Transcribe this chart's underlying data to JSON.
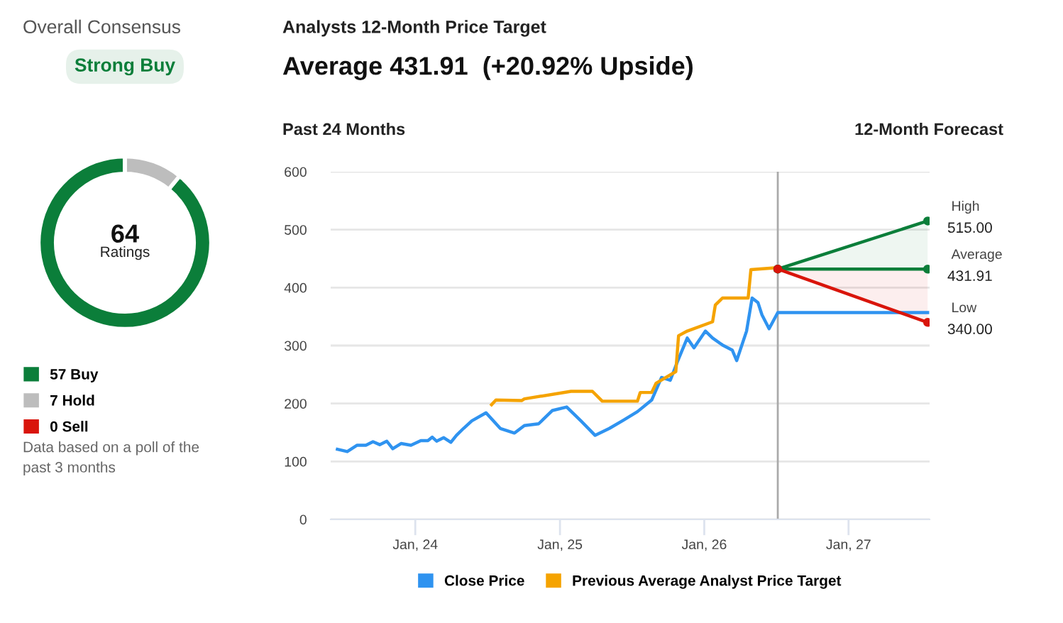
{
  "chart_data": [
    {
      "type": "donut",
      "title": "Overall Consensus",
      "subtitle": "Strong Buy",
      "categories": [
        "57 Buy",
        "7 Hold",
        "0 Sell"
      ],
      "values": [
        57,
        7,
        0
      ],
      "colors": [
        "#0b7e3a",
        "#bdbdbd",
        "#d9150b"
      ],
      "legend": "bottom",
      "annotations": [
        "64",
        "Ratings",
        "Data based on a poll of the\npast 3 months"
      ]
    },
    {
      "type": "line",
      "title": "Analysts 12-Month Price Target",
      "subtitle": "Average 431.91  (+20.92% Upside)",
      "annotations": [
        "Past 24 Months",
        "12-Month Forecast"
      ],
      "series": [
        {
          "name": "Close Price",
          "color": "#2f93f0",
          "x": [
            "2023-06-18",
            "2023-07-13",
            "2023-08-07",
            "2023-08-29",
            "2023-09-16",
            "2023-10-03",
            "2023-10-21",
            "2023-11-05",
            "2023-11-26",
            "2023-12-21",
            "2024-01-15",
            "2024-02-02",
            "2024-02-13",
            "2024-02-24",
            "2024-03-13",
            "2024-03-31",
            "2024-04-14",
            "2024-05-02",
            "2024-05-23",
            "2024-06-28",
            "2024-08-03",
            "2024-09-08",
            "2024-10-03",
            "2024-11-08",
            "2024-12-13",
            "2025-01-18",
            "2025-02-23",
            "2025-03-31",
            "2025-05-06",
            "2025-06-10",
            "2025-07-16",
            "2025-08-21",
            "2025-09-15",
            "2025-10-07",
            "2025-10-25",
            "2025-11-19",
            "2025-12-06",
            "2026-01-04",
            "2026-01-22",
            "2026-02-16",
            "2026-03-13",
            "2026-03-24",
            "2026-04-18",
            "2026-05-02",
            "2026-05-17",
            "2026-05-27",
            "2026-06-14",
            "2026-07-06",
            "2027-07-20"
          ],
          "values": [
            121,
            117,
            128,
            128,
            134,
            129,
            135,
            122,
            131,
            128,
            136,
            136,
            142,
            135,
            141,
            133,
            145,
            157,
            170,
            184,
            157,
            149,
            162,
            165,
            188,
            194,
            170,
            145,
            157,
            171,
            186,
            206,
            245,
            240,
            272,
            313,
            296,
            325,
            313,
            301,
            292,
            274,
            325,
            382,
            374,
            353,
            329,
            357,
            357
          ]
        },
        {
          "name": "Previous Average Analyst Price Target",
          "color": "#f5a300",
          "x": [
            "2024-07-12",
            "2024-07-23",
            "2024-09-26",
            "2024-10-03",
            "2025-01-29",
            "2025-03-24",
            "2025-04-18",
            "2025-07-16",
            "2025-07-23",
            "2025-08-21",
            "2025-09-01",
            "2025-10-21",
            "2025-10-28",
            "2025-11-19",
            "2026-01-22",
            "2026-01-29",
            "2026-02-16",
            "2026-04-22",
            "2026-04-29",
            "2026-06-28",
            "2026-07-06"
          ],
          "values": [
            198,
            206,
            205,
            208,
            221,
            221,
            204,
            204,
            219,
            219,
            235,
            255,
            317,
            325,
            341,
            370,
            382,
            382,
            431,
            434,
            432
          ]
        },
        {
          "name": "High",
          "color": "#0b7e3a",
          "marker": "circle",
          "x": [
            "2026-07-06",
            "2027-07-20"
          ],
          "values": [
            432,
            515
          ],
          "lower": [
            432,
            432
          ],
          "upper": [
            432,
            515
          ],
          "value_labels": [
            null,
            "515.00"
          ]
        },
        {
          "name": "Average",
          "color": "#0b7e3a",
          "marker": "circle",
          "x": [
            "2026-07-06",
            "2027-07-20"
          ],
          "values": [
            432,
            431.91
          ],
          "value_labels": [
            null,
            "431.91"
          ]
        },
        {
          "name": "Low",
          "color": "#d9150b",
          "marker": "circle",
          "x": [
            "2026-07-06",
            "2027-07-20"
          ],
          "values": [
            432,
            340
          ],
          "lower": [
            432,
            340
          ],
          "upper": [
            432,
            431.91
          ],
          "value_labels": [
            null,
            "340.00"
          ]
        }
      ],
      "xlim": [
        "2023-06-01",
        "2027-07-25"
      ],
      "xticks": [
        {
          "value": "2024-01-01",
          "label": "Jan, 24"
        },
        {
          "value": "2025-01-01",
          "label": "Jan, 25"
        },
        {
          "value": "2026-01-01",
          "label": "Jan, 26"
        },
        {
          "value": "2027-01-01",
          "label": "Jan, 27"
        }
      ],
      "ylim": [
        0,
        600
      ],
      "yticks": [
        0,
        100,
        200,
        300,
        400,
        500,
        600
      ],
      "ref_lines": [
        {
          "axis": "x",
          "value": "2026-07-06",
          "color": "#aaaaaa"
        }
      ],
      "grid": "y",
      "legend": "bottom"
    }
  ]
}
